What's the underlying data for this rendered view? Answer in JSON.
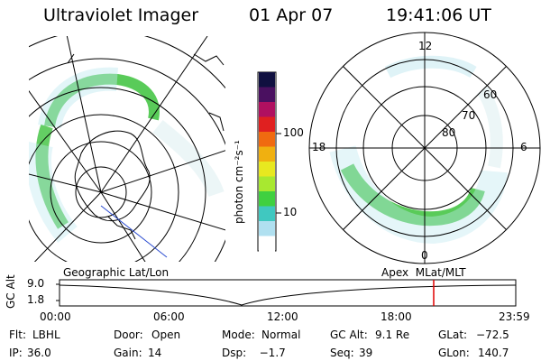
{
  "header": {
    "instrument": "Ultraviolet Imager",
    "date": "01 Apr 07",
    "time": "19:41:06 UT"
  },
  "colorbar": {
    "label": "photon cm⁻²s⁻¹",
    "ticks": [
      "100",
      "10"
    ],
    "colors": [
      "#101040",
      "#4a1060",
      "#b01060",
      "#e02020",
      "#f06a10",
      "#f0b010",
      "#e8e820",
      "#a8e830",
      "#40d040",
      "#40c8c0",
      "#b0e0f0",
      "#ffffff"
    ]
  },
  "left_map": {
    "projection": "Geographic Lat/Lon",
    "aurora_color": "#3cc23c",
    "grid_color": "#000000",
    "track_color": "#2a4bd0"
  },
  "right_map": {
    "projection": "Apex  MLat/MLT",
    "mlt_labels": {
      "top": "12",
      "right": "6",
      "bottom": "0",
      "left": "18"
    },
    "lat_labels": [
      "60",
      "70",
      "80"
    ]
  },
  "altitude_plot": {
    "ylabel": "GC Alt",
    "yticks": [
      "9.0",
      "1.8"
    ],
    "xticks": [
      "00:00",
      "06:00",
      "12:00",
      "18:00",
      "23:59"
    ],
    "marker_color": "#e00000",
    "marker_time_hours": 19.685
  },
  "status": {
    "row1": [
      {
        "label": "Flt:",
        "value": "LBHL"
      },
      {
        "label": "Door:",
        "value": "Open"
      },
      {
        "label": "Mode:",
        "value": "Normal"
      },
      {
        "label": "GC Alt:",
        "value": "9.1 Re"
      },
      {
        "label": "GLat:",
        "value": "−72.5"
      }
    ],
    "row2": [
      {
        "label": "IP:",
        "value": "36.0"
      },
      {
        "label": "Gain:",
        "value": "14"
      },
      {
        "label": "Dsp:",
        "value": "  −1.7"
      },
      {
        "label": "Seq:",
        "value": "39"
      },
      {
        "label": "GLon:",
        "value": "140.7"
      }
    ]
  }
}
